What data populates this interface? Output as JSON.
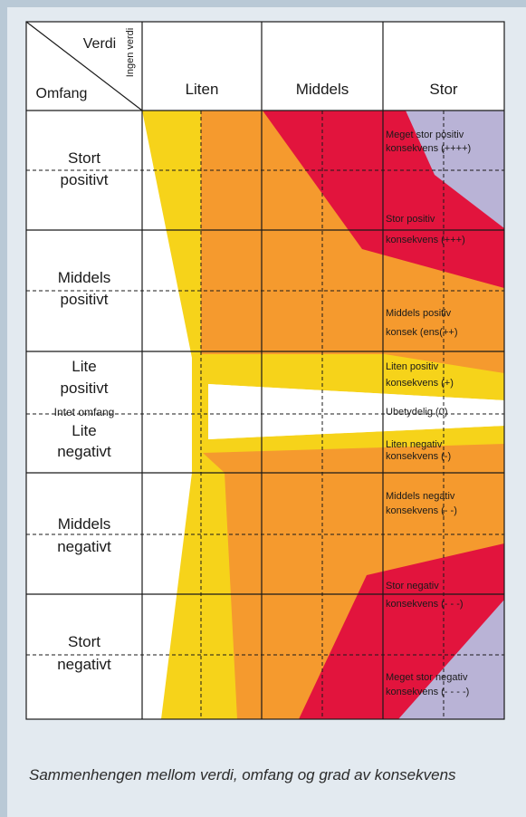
{
  "header": {
    "verdi": "Verdi",
    "omfang": "Omfang",
    "ingen_verdi": "Ingen verdi",
    "columns": [
      "Liten",
      "Middels",
      "Stor"
    ]
  },
  "rows": [
    {
      "line1": "Stort",
      "line2": "positivt"
    },
    {
      "line1": "Middels",
      "line2": "positivt"
    },
    {
      "line1": "Lite",
      "line2": "positivt"
    },
    {
      "line1": "Intet omfang",
      "line2": ""
    },
    {
      "line1": "Lite",
      "line2": "negativt"
    },
    {
      "line1": "Middels",
      "line2": "negativt"
    },
    {
      "line1": "Stort",
      "line2": "negativt"
    }
  ],
  "zone_labels": [
    {
      "line1": "Meget stor positiv",
      "line2": "konsekvens (++++)"
    },
    {
      "line1": "Stor positiv",
      "line2": "konsekvens (+++)"
    },
    {
      "line1": "Middels positiv",
      "line2": "konsek (ens(++)"
    },
    {
      "line1": "Liten positiv",
      "line2": "konsekvens (+)"
    },
    {
      "line1": "Ubetydelig (0)",
      "line2": ""
    },
    {
      "line1": "Liten negativ",
      "line2": "konsekvens (-)"
    },
    {
      "line1": "Middels negativ",
      "line2": "konsekvens (- -)"
    },
    {
      "line1": "Stor negativ",
      "line2": "konsekvens (- - -)"
    },
    {
      "line1": "Meget stor negativ",
      "line2": "konsekvens (- - - -)"
    }
  ],
  "caption": "Sammenhengen mellom verdi, omfang og grad av konsekvens",
  "colors": {
    "frame": "#b9c9d6",
    "panel": "#e3eaf0",
    "yellow": "#f6d31a",
    "orange": "#f59a2e",
    "red": "#e2143d",
    "lilac": "#b9b3d6",
    "grid": "#1a1a1a"
  }
}
